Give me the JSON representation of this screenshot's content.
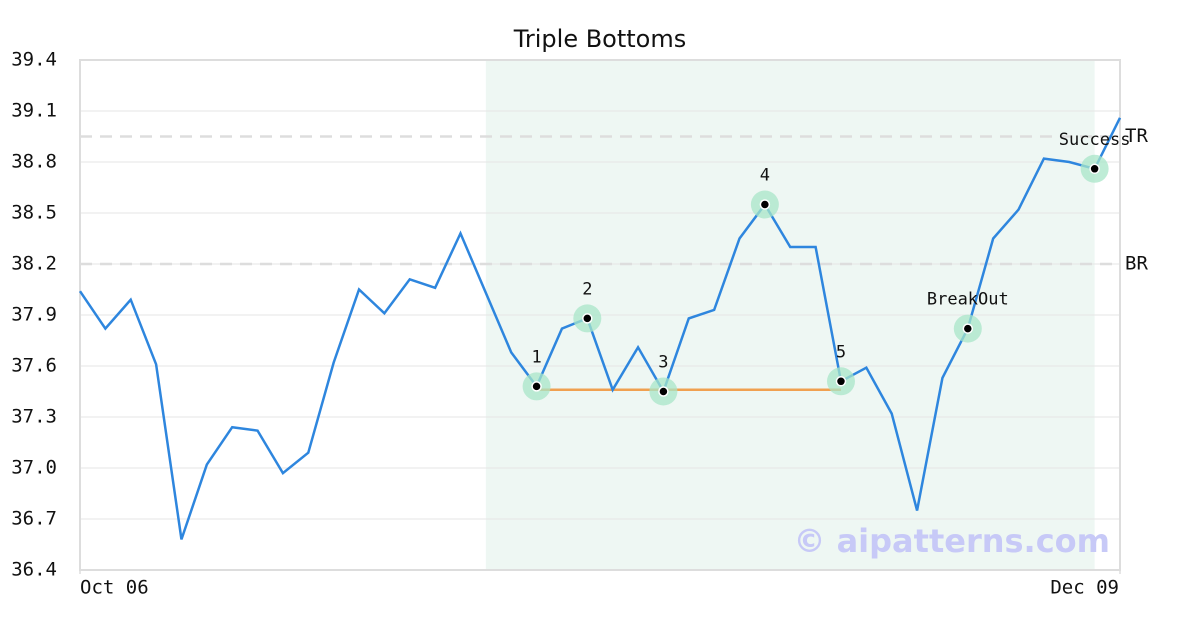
{
  "chart_data": {
    "type": "line",
    "title": "Triple Bottoms",
    "x": [
      0,
      1,
      2,
      3,
      4,
      5,
      6,
      7,
      8,
      9,
      10,
      11,
      12,
      13,
      14,
      15,
      16,
      17,
      18,
      19,
      20,
      21,
      22,
      23,
      24,
      25,
      26,
      27,
      28,
      29,
      30,
      31,
      32,
      33,
      34,
      35,
      36,
      37,
      38,
      39,
      40,
      41
    ],
    "series": [
      {
        "color": "#2e86de",
        "values": [
          38.04,
          37.82,
          37.99,
          37.61,
          36.58,
          37.02,
          37.24,
          37.22,
          36.97,
          37.09,
          37.62,
          38.05,
          37.91,
          38.11,
          38.06,
          38.38,
          38.03,
          37.68,
          37.48,
          37.82,
          37.88,
          37.46,
          37.71,
          37.45,
          37.88,
          37.93,
          38.35,
          38.55,
          38.3,
          38.3,
          37.51,
          37.59,
          37.32,
          36.75,
          37.53,
          37.82,
          38.35,
          38.52,
          38.82,
          38.8,
          38.76,
          39.06
        ]
      }
    ],
    "xlim": [
      0,
      41
    ],
    "xticks": [
      {
        "value": 0,
        "label": "Oct 06"
      },
      {
        "value": 41,
        "label": "Dec 09"
      }
    ],
    "ylim": [
      36.4,
      39.4
    ],
    "yticks": [
      36.4,
      36.7,
      {
        "value": 37,
        "label": "37.0"
      },
      37.3,
      37.6,
      37.9,
      38.2,
      38.5,
      38.8,
      39.1,
      39.4
    ],
    "grid": true,
    "shaded_range": [
      16,
      40
    ],
    "support_line": {
      "y": 37.46,
      "x": [
        18,
        30
      ],
      "color": "#f0a050"
    },
    "levels": [
      {
        "label": "TR",
        "value": 38.95
      },
      {
        "label": "BR",
        "value": 38.2
      }
    ],
    "points": [
      {
        "label": "1",
        "x": 18,
        "y": 37.48
      },
      {
        "label": "2",
        "x": 20,
        "y": 37.88
      },
      {
        "label": "3",
        "x": 23,
        "y": 37.45
      },
      {
        "label": "4",
        "x": 27,
        "y": 38.55
      },
      {
        "label": "5",
        "x": 30,
        "y": 37.51
      },
      {
        "label": "BreakOut",
        "x": 35,
        "y": 37.82
      },
      {
        "label": "Success",
        "x": 40,
        "y": 38.76
      }
    ],
    "watermark": "© aipatterns.com"
  }
}
